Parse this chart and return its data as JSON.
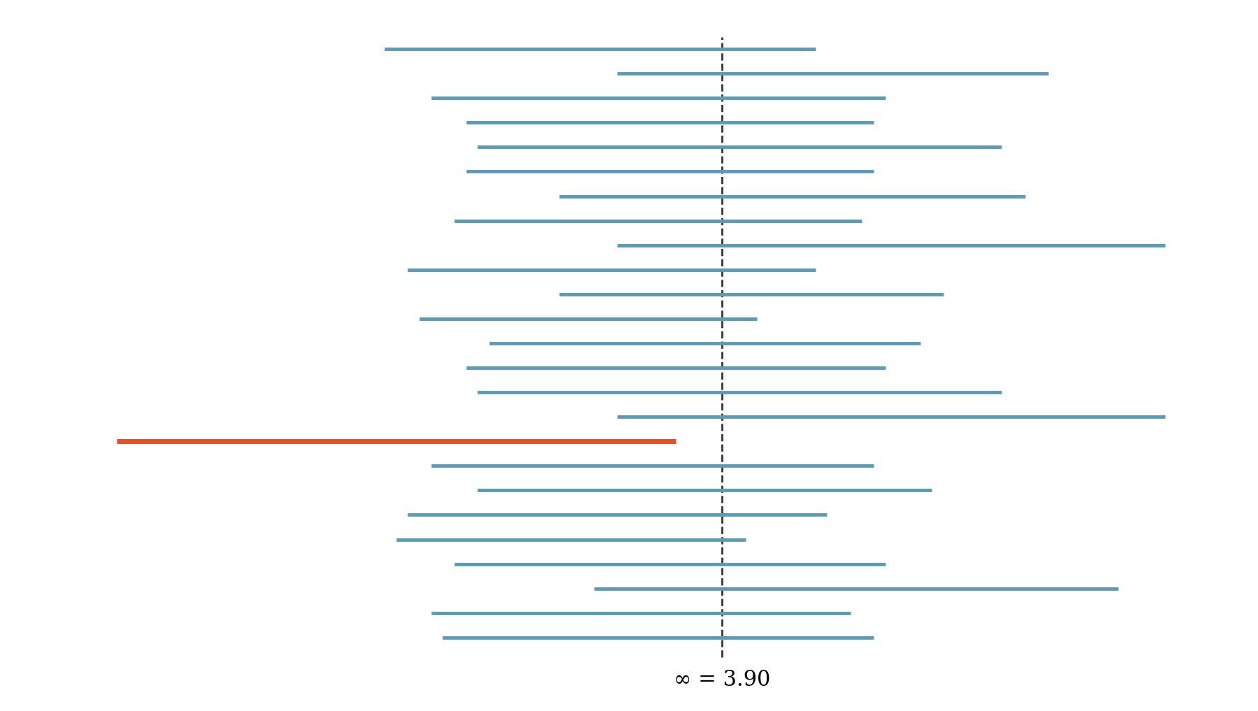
{
  "true_mean": 3.9,
  "n_intervals": 25,
  "intervals": [
    [
      2.45,
      4.3
    ],
    [
      3.45,
      5.3
    ],
    [
      2.65,
      4.6
    ],
    [
      2.8,
      4.55
    ],
    [
      2.85,
      5.1
    ],
    [
      2.8,
      4.55
    ],
    [
      3.2,
      5.2
    ],
    [
      2.75,
      4.5
    ],
    [
      3.45,
      5.8
    ],
    [
      2.55,
      4.3
    ],
    [
      3.2,
      4.85
    ],
    [
      2.6,
      4.05
    ],
    [
      2.9,
      4.75
    ],
    [
      2.8,
      4.6
    ],
    [
      2.85,
      5.1
    ],
    [
      3.45,
      5.8
    ],
    [
      1.3,
      3.7
    ],
    [
      2.65,
      4.55
    ],
    [
      2.85,
      4.8
    ],
    [
      2.55,
      4.35
    ],
    [
      2.5,
      4.0
    ],
    [
      2.75,
      4.6
    ],
    [
      3.35,
      5.6
    ],
    [
      2.65,
      4.45
    ],
    [
      2.7,
      4.55
    ]
  ],
  "miss_index": 16,
  "blue_color": "#5b9ab8",
  "red_color": "#e84e2a",
  "dashed_color": "#333333",
  "background_color": "#ffffff",
  "label_text": "∞ = 3.90",
  "label_fontsize": 22,
  "figsize": [
    18.0,
    10.17
  ],
  "dpi": 100,
  "line_width": 3.5,
  "dashed_lw": 2.0,
  "xlim": [
    0.8,
    6.2
  ],
  "ylim": [
    -2.0,
    27.0
  ]
}
